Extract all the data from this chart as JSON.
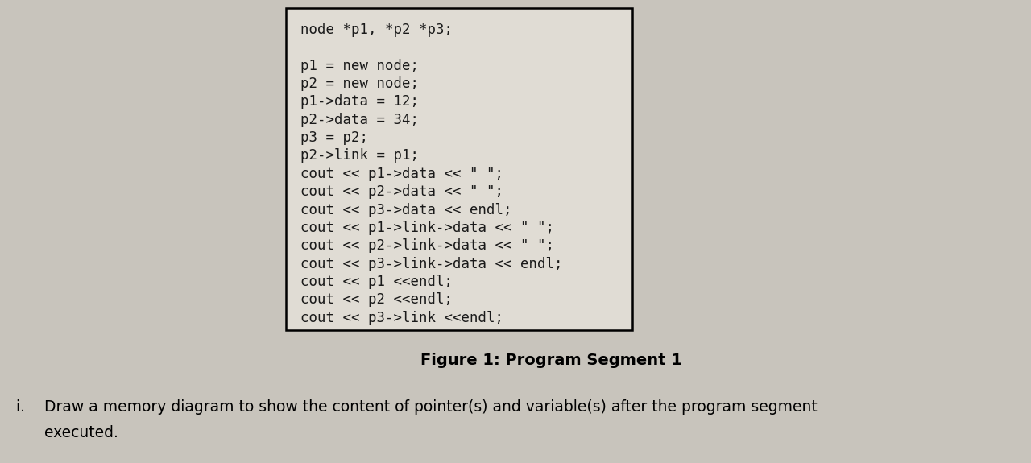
{
  "background_color": "#c8c4bc",
  "box_bg_color": "#e0dcd4",
  "box_border_color": "#000000",
  "title_line": "Figure 1: Program Segment 1",
  "title_fontsize": 14,
  "caption_line1": "i.    Draw a memory diagram to show the content of pointer(s) and variable(s) after the program segment",
  "caption_line2": "executed.",
  "caption_fontsize": 13.5,
  "code_lines": [
    "node *p1, *p2 *p3;",
    "",
    "p1 = new node;",
    "p2 = new node;",
    "p1->data = 12;",
    "p2->data = 34;",
    "p3 = p2;",
    "p2->link = p1;",
    "cout << p1->data << \" \";",
    "cout << p2->data << \" \";",
    "cout << p3->data << endl;",
    "cout << p1->link->data << \" \";",
    "cout << p2->link->data << \" \";",
    "cout << p3->link->data << endl;",
    "cout << p1 <<endl;",
    "cout << p2 <<endl;",
    "cout << p3->link <<endl;"
  ],
  "code_fontsize": 12.5,
  "code_font": "monospace",
  "code_color": "#1a1a1a",
  "figsize": [
    12.8,
    5.75
  ],
  "dpi": 100
}
